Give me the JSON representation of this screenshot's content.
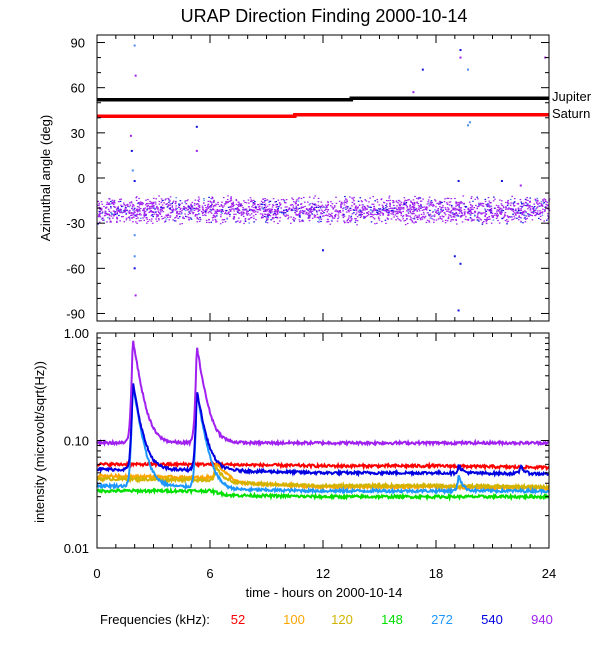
{
  "chart_data": [
    {
      "type": "scatter",
      "title": "URAP Direction Finding  2000-10-14",
      "ylabel": "Azimuthal angle (deg)",
      "xlim": [
        0,
        24
      ],
      "ylim": [
        -95,
        95
      ],
      "yticks": [
        90,
        60,
        30,
        0,
        -30,
        -60,
        -90
      ],
      "yticklabels": [
        "90",
        "60",
        "30",
        "0",
        "-30",
        "-60",
        "-90"
      ],
      "reference_lines": [
        {
          "name": "Jupiter",
          "color": "#000000",
          "points": [
            [
              0,
              52
            ],
            [
              13.5,
              52
            ],
            [
              13.5,
              53
            ],
            [
              24,
              53
            ]
          ]
        },
        {
          "name": "Saturn",
          "color": "#ff0000",
          "points": [
            [
              0,
              41
            ],
            [
              10.5,
              41
            ],
            [
              10.5,
              42
            ],
            [
              24,
              42
            ]
          ]
        }
      ],
      "band": {
        "center": -21,
        "halfwidth": 9,
        "colors": [
          "#a020f0",
          "#1010e0",
          "#4a8cf0"
        ]
      },
      "outliers": [
        {
          "x": 1.8,
          "y": 28,
          "color": "#a020f0"
        },
        {
          "x": 1.85,
          "y": 18,
          "color": "#1010e0"
        },
        {
          "x": 1.9,
          "y": 5,
          "color": "#4a8cf0"
        },
        {
          "x": 2.0,
          "y": -2,
          "color": "#1010e0"
        },
        {
          "x": 2.0,
          "y": 88,
          "color": "#4a8cf0"
        },
        {
          "x": 2.05,
          "y": 68,
          "color": "#a020f0"
        },
        {
          "x": 2.0,
          "y": -38,
          "color": "#4a8cf0"
        },
        {
          "x": 2.0,
          "y": -52,
          "color": "#4a8cf0"
        },
        {
          "x": 2.0,
          "y": -60,
          "color": "#1010e0"
        },
        {
          "x": 2.05,
          "y": -78,
          "color": "#a020f0"
        },
        {
          "x": 5.3,
          "y": 34,
          "color": "#1010e0"
        },
        {
          "x": 5.3,
          "y": 18,
          "color": "#a020f0"
        },
        {
          "x": 17.3,
          "y": 72,
          "color": "#1010e0"
        },
        {
          "x": 16.8,
          "y": 57,
          "color": "#a020f0"
        },
        {
          "x": 19.3,
          "y": 85,
          "color": "#1010e0"
        },
        {
          "x": 19.3,
          "y": 80,
          "color": "#a020f0"
        },
        {
          "x": 19.7,
          "y": 72,
          "color": "#4a8cf0"
        },
        {
          "x": 19.8,
          "y": 37,
          "color": "#4a8cf0"
        },
        {
          "x": 19.7,
          "y": 35,
          "color": "#4a8cf0"
        },
        {
          "x": 19.2,
          "y": -2,
          "color": "#1010e0"
        },
        {
          "x": 19.0,
          "y": -52,
          "color": "#1010e0"
        },
        {
          "x": 19.3,
          "y": -57,
          "color": "#1010e0"
        },
        {
          "x": 19.2,
          "y": -88,
          "color": "#1010e0"
        },
        {
          "x": 21.5,
          "y": -2,
          "color": "#1010e0"
        },
        {
          "x": 22.5,
          "y": -5,
          "color": "#a020f0"
        },
        {
          "x": 23.8,
          "y": 80,
          "color": "#a020f0"
        },
        {
          "x": 12.0,
          "y": -48,
          "color": "#1010e0"
        },
        {
          "x": 0.8,
          "y": -24,
          "color": "#4a8cf0"
        }
      ],
      "legend": [
        {
          "label": "Jupiter",
          "color": "#000000"
        },
        {
          "label": "Saturn",
          "color": "#ff0000"
        }
      ]
    },
    {
      "type": "line",
      "ylabel": "intensity (microvolt/sqrt(Hz))",
      "xlabel": "time - hours on 2000-10-14",
      "xlim": [
        0,
        24
      ],
      "ylim": [
        0.01,
        1.0
      ],
      "yscale": "log",
      "xticks": [
        0,
        6,
        12,
        18,
        24
      ],
      "xticklabels": [
        "0",
        "6",
        "12",
        "18",
        "24"
      ],
      "yticks": [
        1.0,
        0.1,
        0.01
      ],
      "yticklabels": [
        "1.00",
        "0.10",
        "0.01"
      ],
      "series": [
        {
          "name": "52",
          "color": "#ff0000",
          "base": [
            [
              0,
              0.06
            ],
            [
              6,
              0.06
            ],
            [
              12,
              0.058
            ],
            [
              18,
              0.058
            ],
            [
              24,
              0.056
            ]
          ]
        },
        {
          "name": "100",
          "color": "#ffa500",
          "base": [
            [
              0,
              0.047
            ],
            [
              6,
              0.045
            ],
            [
              6.5,
              0.05
            ],
            [
              7.5,
              0.04
            ],
            [
              12,
              0.037
            ],
            [
              18,
              0.037
            ],
            [
              24,
              0.036
            ]
          ]
        },
        {
          "name": "120",
          "color": "#d2b400",
          "base": [
            [
              0,
              0.044
            ],
            [
              6,
              0.043
            ],
            [
              7,
              0.04
            ],
            [
              12,
              0.038
            ],
            [
              18,
              0.038
            ],
            [
              24,
              0.037
            ]
          ]
        },
        {
          "name": "148",
          "color": "#00e000",
          "base": [
            [
              0,
              0.034
            ],
            [
              6,
              0.034
            ],
            [
              7,
              0.031
            ],
            [
              12,
              0.03
            ],
            [
              18,
              0.03
            ],
            [
              24,
              0.03
            ]
          ]
        },
        {
          "name": "272",
          "color": "#1e96ff",
          "base": [
            [
              0,
              0.038
            ],
            [
              6,
              0.037
            ],
            [
              7,
              0.035
            ],
            [
              12,
              0.034
            ],
            [
              18,
              0.034
            ],
            [
              24,
              0.034
            ]
          ]
        },
        {
          "name": "540",
          "color": "#0000e0",
          "base": [
            [
              0,
              0.054
            ],
            [
              6,
              0.053
            ],
            [
              12,
              0.05
            ],
            [
              18,
              0.05
            ],
            [
              24,
              0.049
            ]
          ]
        },
        {
          "name": "940",
          "color": "#a020f0",
          "base": [
            [
              0,
              0.095
            ],
            [
              24,
              0.095
            ]
          ]
        }
      ],
      "peaks": [
        {
          "t": 1.9,
          "peak": 0.9,
          "decay": 0.35,
          "series": [
            "940",
            "540",
            "272"
          ]
        },
        {
          "t": 5.3,
          "peak": 0.75,
          "decay": 0.35,
          "series": [
            "940",
            "540",
            "272"
          ]
        },
        {
          "t": 6.3,
          "peak": 0.085,
          "decay": 0.4,
          "series": [
            "100",
            "120"
          ]
        },
        {
          "t": 1.2,
          "peak": 0.09,
          "decay": 0.2,
          "series": [
            "940"
          ]
        },
        {
          "t": 19.2,
          "peak": 0.075,
          "decay": 0.2,
          "series": [
            "540",
            "272"
          ]
        },
        {
          "t": 22.5,
          "peak": 0.08,
          "decay": 0.15,
          "series": [
            "540"
          ]
        }
      ]
    }
  ],
  "legend_title": "Frequencies (kHz):",
  "frequencies": [
    "52",
    "100",
    "120",
    "148",
    "272",
    "540",
    "940"
  ],
  "frequency_colors": [
    "#ff0000",
    "#ffa500",
    "#d2b400",
    "#00e000",
    "#1e96ff",
    "#0000e0",
    "#a020f0"
  ]
}
